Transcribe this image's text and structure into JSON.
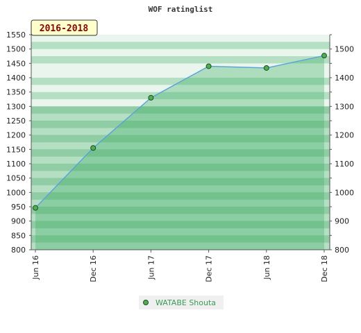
{
  "chart_data": {
    "type": "area",
    "title": "WOF ratinglist",
    "badge": "2016-2018",
    "x": [
      "Jun 16",
      "Dec 16",
      "Jun 17",
      "Dec 17",
      "Jun 18",
      "Dec 18"
    ],
    "series": [
      {
        "name": "WATABE Shouta",
        "values": [
          946,
          1155,
          1330,
          1440,
          1434,
          1477
        ]
      }
    ],
    "ylim": [
      800,
      1550
    ],
    "left_ticks": [
      800,
      850,
      900,
      950,
      1000,
      1050,
      1100,
      1150,
      1200,
      1250,
      1300,
      1350,
      1400,
      1450,
      1500,
      1550
    ],
    "right_ticks": [
      800,
      900,
      1000,
      1100,
      1200,
      1300,
      1400,
      1500
    ],
    "grid": false,
    "legend_position": "bottom",
    "colors": {
      "line": "#5aa5d8",
      "marker_fill": "#4caf50",
      "marker_stroke": "#1f4d22",
      "band_dark": "#7cc494",
      "band_mid": "#a8d9b8",
      "band_light": "#e6f4ea",
      "badge_bg": "#ffffcc",
      "badge_text": "#8b0000",
      "legend_text": "#3a9a55"
    }
  }
}
